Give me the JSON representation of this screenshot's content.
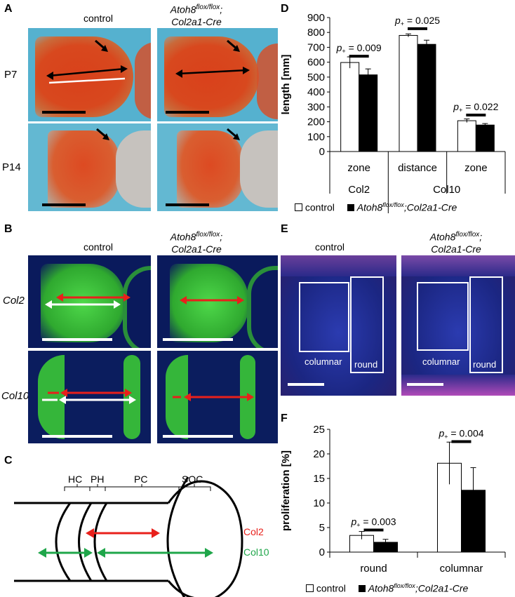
{
  "panels": {
    "A": {
      "letter": "A",
      "col_control": "control",
      "col_mutant_a": "Atoh8",
      "col_mutant_sup": "flox/flox",
      "col_mutant_b": ";",
      "col_mutant_c": "Col2a1-Cre",
      "row1": "P7",
      "row2": "P14"
    },
    "B": {
      "letter": "B",
      "col_control": "control",
      "col_mutant_a": "Atoh8",
      "col_mutant_sup": "flox/flox",
      "col_mutant_b": ";",
      "col_mutant_c": "Col2a1-Cre",
      "row1": "Col2",
      "row2": "Col10"
    },
    "C": {
      "letter": "C",
      "zones": [
        "HC",
        "PH",
        "PC",
        "SOC"
      ],
      "arrow_red_label": "Col2",
      "arrow_green_label": "Col10",
      "colors": {
        "red": "#e8201b",
        "green": "#1fa64a"
      }
    },
    "D": {
      "letter": "D",
      "legend_control": "control",
      "legend_mutant_a": "Atoh8",
      "legend_mutant_sup": "flox/flox",
      "legend_mutant_b": ";Col2a1-Cre"
    },
    "E": {
      "letter": "E",
      "col_control": "control",
      "col_mutant_a": "Atoh8",
      "col_mutant_sup": "flox/flox",
      "col_mutant_b": ";",
      "col_mutant_c": "Col2a1-Cre",
      "box1": "columnar",
      "box2": "round",
      "box3": "columnar",
      "box4": "round"
    },
    "F": {
      "letter": "F",
      "legend_control": "control",
      "legend_mutant_a": "Atoh8",
      "legend_mutant_sup": "flox/flox",
      "legend_mutant_b": ";Col2a1-Cre"
    }
  },
  "chart_data": [
    {
      "panel": "D",
      "type": "bar",
      "ylabel": "length [mm]",
      "ylim": [
        0,
        900
      ],
      "yticks": [
        0,
        100,
        200,
        300,
        400,
        500,
        600,
        700,
        800,
        900
      ],
      "categories": [
        "zone",
        "distance",
        "zone"
      ],
      "groups": [
        {
          "label": "Col2",
          "span": [
            0,
            0
          ]
        },
        {
          "label": "Col10",
          "span": [
            1,
            2
          ]
        }
      ],
      "series": [
        {
          "name": "control",
          "color": "#ffffff",
          "values": [
            598,
            780,
            207
          ],
          "errors": [
            38,
            10,
            12
          ]
        },
        {
          "name": "Atoh8flox/flox;Col2a1-Cre",
          "color": "#000000",
          "values": [
            515,
            720,
            178
          ],
          "errors": [
            40,
            28,
            10
          ]
        }
      ],
      "annotations": [
        {
          "category": 0,
          "text_p": "p",
          "text_sub": "+",
          "text_rest": " = 0.009",
          "y": 640
        },
        {
          "category": 1,
          "text_p": "p",
          "text_sub": "+",
          "text_rest": " = 0.025",
          "y": 825
        },
        {
          "category": 2,
          "text_p": "p",
          "text_sub": "+",
          "text_rest": " = 0.022",
          "y": 245
        }
      ]
    },
    {
      "panel": "F",
      "type": "bar",
      "ylabel": "proliferation [%]",
      "ylim": [
        0,
        25
      ],
      "yticks": [
        0,
        5,
        10,
        15,
        20,
        25
      ],
      "categories": [
        "round",
        "columnar"
      ],
      "series": [
        {
          "name": "control",
          "color": "#ffffff",
          "values": [
            3.4,
            18.1
          ],
          "errors": [
            0.8,
            4.3
          ]
        },
        {
          "name": "Atoh8flox/flox;Col2a1-Cre",
          "color": "#000000",
          "values": [
            2.0,
            12.6
          ],
          "errors": [
            0.6,
            4.6
          ]
        }
      ],
      "annotations": [
        {
          "category": 0,
          "text_p": "p",
          "text_sub": "+",
          "text_rest": " = 0.003",
          "y": 4.5
        },
        {
          "category": 1,
          "text_p": "p",
          "text_sub": "+",
          "text_rest": " = 0.004",
          "y": 22.5
        }
      ]
    }
  ]
}
